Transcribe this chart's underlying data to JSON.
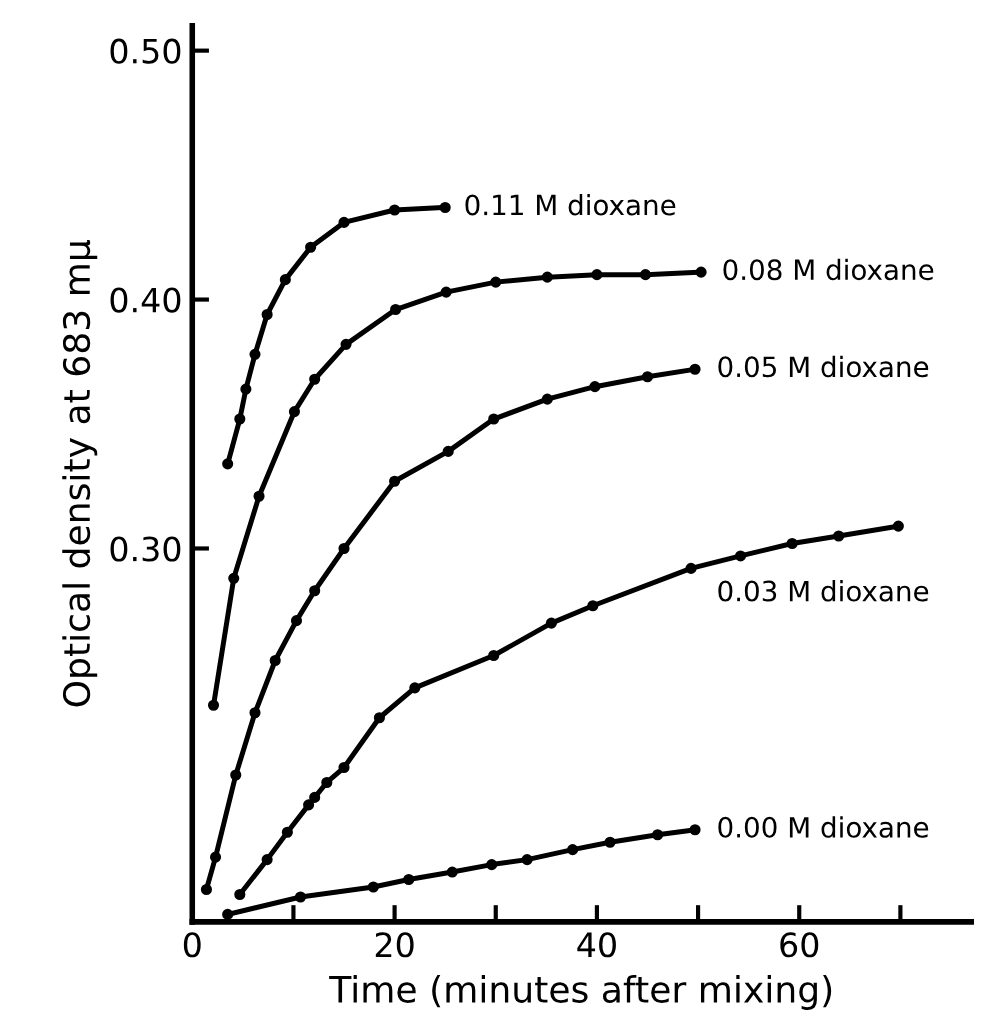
{
  "chart_data": {
    "type": "line",
    "xlabel": "Time (minutes after mixing)",
    "ylabel": "Optical density at 683 mμ",
    "xlim": [
      0,
      77
    ],
    "ylim": [
      0.15,
      0.51
    ],
    "xticks": [
      0,
      {
        "value": 10,
        "label": null
      },
      20,
      {
        "value": 30,
        "label": null
      },
      40,
      {
        "value": 50,
        "label": null
      },
      60,
      {
        "value": 70,
        "label": null
      }
    ],
    "yticks": [
      {
        "value": 0.3,
        "label": "0.30"
      },
      {
        "value": 0.4,
        "label": "0.40"
      },
      {
        "value": 0.5,
        "label": "0.50"
      }
    ],
    "grid": false,
    "legend": false,
    "marker": "circle",
    "line_style": "solid",
    "series": [
      {
        "color": "#000000",
        "x": [
          3.5,
          4.7,
          5.3,
          6.2,
          7.4,
          9.2,
          11.7,
          15,
          20,
          25
        ],
        "values": [
          0.334,
          0.352,
          0.364,
          0.378,
          0.394,
          0.408,
          0.421,
          0.431,
          0.436,
          0.437
        ]
      },
      {
        "color": "#000000",
        "x": [
          2.1,
          4.1,
          6.6,
          10.1,
          12.1,
          15.2,
          20.1,
          25.1,
          30,
          35.1,
          40,
          44.8,
          50.3
        ],
        "values": [
          0.237,
          0.288,
          0.321,
          0.355,
          0.368,
          0.382,
          0.396,
          0.403,
          0.407,
          0.409,
          0.41,
          0.41,
          0.411
        ]
      },
      {
        "color": "#000000",
        "x": [
          1.4,
          2.3,
          4.3,
          6.2,
          8.2,
          10.3,
          12.1,
          15,
          20,
          25.3,
          29.8,
          35.1,
          39.8,
          45,
          49.7
        ],
        "values": [
          0.163,
          0.176,
          0.209,
          0.234,
          0.255,
          0.271,
          0.283,
          0.3,
          0.327,
          0.339,
          0.352,
          0.36,
          0.365,
          0.369,
          0.372
        ]
      },
      {
        "color": "#000000",
        "x": [
          4.7,
          7.4,
          9.4,
          11.5,
          12.1,
          13.3,
          15,
          18.5,
          22,
          29.8,
          35.5,
          39.6,
          49.3,
          54.2,
          59.3,
          63.9,
          69.8
        ],
        "values": [
          0.161,
          0.175,
          0.186,
          0.197,
          0.2,
          0.206,
          0.212,
          0.232,
          0.244,
          0.257,
          0.27,
          0.277,
          0.292,
          0.297,
          0.302,
          0.305,
          0.309
        ]
      },
      {
        "color": "#000000",
        "x": [
          3.5,
          10.7,
          17.9,
          21.4,
          25.7,
          29.6,
          33.1,
          37.6,
          41.3,
          46,
          49.7
        ],
        "values": [
          0.153,
          0.16,
          0.164,
          0.167,
          0.17,
          0.173,
          0.175,
          0.179,
          0.182,
          0.185,
          0.187
        ]
      }
    ],
    "annotations": [
      {
        "text": "0.11 M dioxane",
        "x": 26,
        "y": 0.437
      },
      {
        "text": "0.08 M dioxane",
        "x": 51.5,
        "y": 0.411
      },
      {
        "text": "0.05 M dioxane",
        "x": 51,
        "y": 0.372
      },
      {
        "text": "0.03 M dioxane",
        "x": 51,
        "y": 0.294
      },
      {
        "text": "0.00 M dioxane",
        "x": 51,
        "y": 0.187
      }
    ]
  }
}
